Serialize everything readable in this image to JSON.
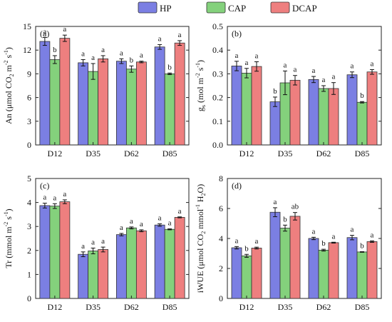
{
  "legend": {
    "items": [
      {
        "label": "HP",
        "color": "#7b7fe3"
      },
      {
        "label": "CAP",
        "color": "#84d17c"
      },
      {
        "label": "DCAP",
        "color": "#ee7f7f"
      }
    ]
  },
  "chart_data": [
    {
      "type": "bar",
      "panel": "(a)",
      "ylabel_parts": [
        "An (μmol CO",
        "2",
        " m",
        "-2",
        " s",
        "-1",
        ")"
      ],
      "categories": [
        "D12",
        "D35",
        "D62",
        "D85"
      ],
      "ylim": [
        0,
        15
      ],
      "yticks": [
        0,
        3,
        6,
        9,
        12,
        15
      ],
      "series": [
        {
          "name": "HP",
          "color": "#7b7fe3",
          "values": [
            13.1,
            10.4,
            10.6,
            12.4
          ],
          "errors": [
            0.5,
            0.4,
            0.3,
            0.3
          ],
          "letters": [
            "a",
            "a",
            "a",
            "a"
          ]
        },
        {
          "name": "CAP",
          "color": "#84d17c",
          "values": [
            10.8,
            9.3,
            9.6,
            9.0
          ],
          "errors": [
            0.5,
            1.0,
            0.4,
            0.1
          ],
          "letters": [
            "b",
            "a",
            "b",
            "b"
          ]
        },
        {
          "name": "DCAP",
          "color": "#ee7f7f",
          "values": [
            13.5,
            10.9,
            10.5,
            12.9
          ],
          "errors": [
            0.4,
            0.4,
            0.1,
            0.3
          ],
          "letters": [
            "a",
            "a",
            "a",
            "a"
          ]
        }
      ]
    },
    {
      "type": "bar",
      "panel": "(b)",
      "ylabel_parts": [
        "g",
        "s",
        " (mol m",
        "-2",
        " s",
        "-1",
        ")"
      ],
      "categories": [
        "D12",
        "D35",
        "D62",
        "D85"
      ],
      "ylim": [
        0,
        0.5
      ],
      "yticks": [
        0.0,
        0.1,
        0.2,
        0.3,
        0.4,
        0.5
      ],
      "series": [
        {
          "name": "HP",
          "color": "#7b7fe3",
          "values": [
            0.333,
            0.182,
            0.276,
            0.296
          ],
          "errors": [
            0.02,
            0.02,
            0.013,
            0.012
          ],
          "letters": [
            "a",
            "b",
            "a",
            "a"
          ]
        },
        {
          "name": "CAP",
          "color": "#84d17c",
          "values": [
            0.303,
            0.262,
            0.238,
            0.18
          ],
          "errors": [
            0.02,
            0.05,
            0.012,
            0.003
          ],
          "letters": [
            "a",
            "a",
            "a",
            "b"
          ]
        },
        {
          "name": "DCAP",
          "color": "#ee7f7f",
          "values": [
            0.331,
            0.273,
            0.238,
            0.308
          ],
          "errors": [
            0.02,
            0.02,
            0.025,
            0.01
          ],
          "letters": [
            "a",
            "a",
            "a",
            "a"
          ]
        }
      ]
    },
    {
      "type": "bar",
      "panel": "(c)",
      "ylabel_parts": [
        "Tr (mmol m",
        "-2",
        " s",
        "-1",
        ")"
      ],
      "categories": [
        "D12",
        "D35",
        "D62",
        "D85"
      ],
      "ylim": [
        0,
        5
      ],
      "yticks": [
        0,
        1,
        2,
        3,
        4,
        5
      ],
      "series": [
        {
          "name": "HP",
          "color": "#7b7fe3",
          "values": [
            3.87,
            1.84,
            2.66,
            3.06
          ],
          "errors": [
            0.1,
            0.1,
            0.05,
            0.05
          ],
          "letters": [
            "a",
            "a",
            "a",
            "a"
          ]
        },
        {
          "name": "CAP",
          "color": "#84d17c",
          "values": [
            3.85,
            1.98,
            2.94,
            2.88
          ],
          "errors": [
            0.1,
            0.12,
            0.04,
            0.02
          ],
          "letters": [
            "a",
            "a",
            "a",
            "a"
          ]
        },
        {
          "name": "DCAP",
          "color": "#ee7f7f",
          "values": [
            4.03,
            2.04,
            2.82,
            3.38
          ],
          "errors": [
            0.08,
            0.1,
            0.04,
            0.02
          ],
          "letters": [
            "a",
            "a",
            "a",
            "a"
          ]
        }
      ]
    },
    {
      "type": "bar",
      "panel": "(d)",
      "ylabel_parts": [
        "iWUE (μmol CO",
        "2",
        " mmol",
        "-1",
        " H",
        "2",
        "O)"
      ],
      "categories": [
        "D12",
        "D35",
        "D62",
        "D85"
      ],
      "ylim": [
        0,
        8
      ],
      "yticks": [
        0,
        2,
        4,
        6,
        8
      ],
      "series": [
        {
          "name": "HP",
          "color": "#7b7fe3",
          "values": [
            3.38,
            5.75,
            4.0,
            4.06
          ],
          "errors": [
            0.08,
            0.3,
            0.08,
            0.15
          ],
          "letters": [
            "a",
            "a",
            "a",
            "a"
          ]
        },
        {
          "name": "CAP",
          "color": "#84d17c",
          "values": [
            2.84,
            4.69,
            3.22,
            3.1
          ],
          "errors": [
            0.1,
            0.2,
            0.06,
            0.02
          ],
          "letters": [
            "b",
            "b",
            "b",
            "b"
          ]
        },
        {
          "name": "DCAP",
          "color": "#ee7f7f",
          "values": [
            3.36,
            5.48,
            3.72,
            3.79
          ],
          "errors": [
            0.06,
            0.25,
            0.03,
            0.05
          ],
          "letters": [
            "a",
            "ab",
            "a",
            "a"
          ]
        }
      ]
    }
  ]
}
